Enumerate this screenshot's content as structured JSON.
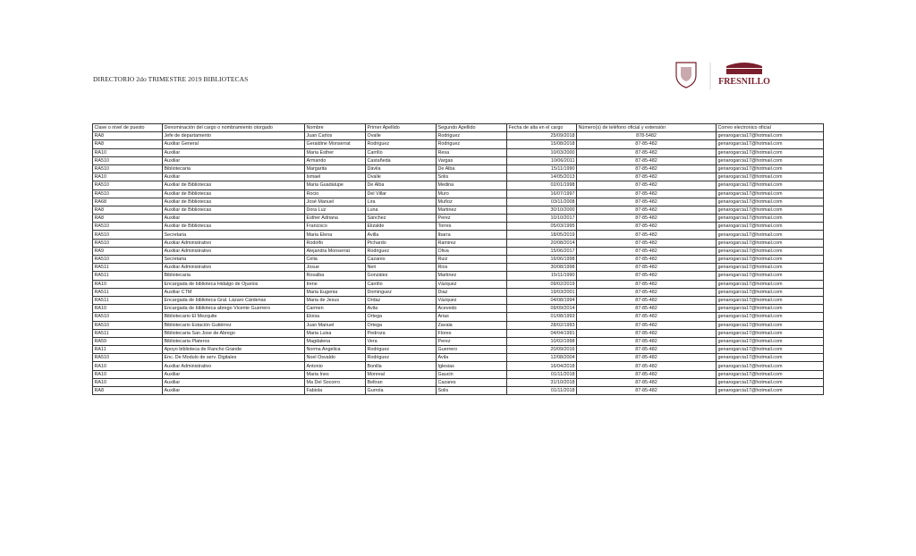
{
  "title": "DIRECTORIO 2do TRIMESTRE 2019 BIBLIOTECAS",
  "logo": {
    "text": "FRESNILLO",
    "subtitle": "2018-2021",
    "color": "#7a1f2b"
  },
  "columns": [
    "Clave o nivel de puesto",
    "Denominación del cargo o nombramiento otorgado",
    "Nombre",
    "Primer Apellido",
    "Segundo Apellido",
    "Fecha de alta en el cargo",
    "Número(s) de teléfono oficial y extensión",
    "Correo electronico oficial"
  ],
  "rows": [
    [
      "RA8",
      "Jefe de departamento",
      "Juan Carlos",
      "Ovalle",
      "Rodriguez",
      "25/09/2018",
      "878-5482",
      "genarogarcia17@hotmail.com"
    ],
    [
      "RA8",
      "Auxiliar General",
      "Geraldine Monserrat",
      "Rodriguez",
      "Rodriguez",
      "15/08/2018",
      "87-85-482",
      "genarogarcia17@hotmail.com"
    ],
    [
      "RA10",
      "Auxiliar",
      "Maria Esther",
      "Carrillo",
      "Resa",
      "10/03/2000",
      "87-85-482",
      "genarogarcia17@hotmail.com"
    ],
    [
      "RA510",
      "Auxiliar",
      "Armando",
      "Castañeda",
      "Vargas",
      "10/06/2011",
      "87-85-482",
      "genarogarcia17@hotmail.com"
    ],
    [
      "RA510",
      "Bibliotecaria",
      "Margarita",
      "Dávila",
      "De Alba",
      "15/11/1990",
      "87-85-482",
      "genarogarcia17@hotmail.com"
    ],
    [
      "RA10",
      "Auxiliar",
      "Ismael",
      "Ovalle",
      "Solis",
      "14/05/2013",
      "87-85-482",
      "genarogarcia17@hotmail.com"
    ],
    [
      "RA510",
      "Auxiliar de Bibliotecas",
      "Maria Guadalupe",
      "De Alba",
      "Medina",
      "02/01/1998",
      "87-85-482",
      "genarogarcia17@hotmail.com"
    ],
    [
      "RA510",
      "Auxiliar de Bibliotecas",
      "Rocio",
      "Del Villar",
      "Muro",
      "16/07/1997",
      "87-85-482",
      "genarogarcia17@hotmail.com"
    ],
    [
      "RA68",
      "Auxiliar de Bibliotecas",
      "José Manuel",
      "Lira",
      "Muñoz",
      "03/11/2008",
      "87-85-482",
      "genarogarcia17@hotmail.com"
    ],
    [
      "RA8",
      "Auxiliar de Bibliotecas",
      "Dora Luz",
      "Luna",
      "Martinez",
      "30/10/2000",
      "87-85-482",
      "genarogarcia17@hotmail.com"
    ],
    [
      "RA8",
      "Auxiliar",
      "Esther Adriana",
      "Sánchez",
      "Perez",
      "10/10/2017",
      "87-85-482",
      "genarogarcia17@hotmail.com"
    ],
    [
      "RA510",
      "Auxiliar de Bibliotecas",
      "Francisco",
      "Elizalde",
      "Torres",
      "05/03/1995",
      "87-85-482",
      "genarogarcia17@hotmail.com"
    ],
    [
      "RA510",
      "Secretaria",
      "Maria Elena",
      "Avilla",
      "Ibarra",
      "18/05/2019",
      "87-85-482",
      "genarogarcia17@hotmail.com"
    ],
    [
      "RA510",
      "Auxiliar Administrativo",
      "Rodolfo",
      "Pichardo",
      "Ramirez",
      "20/08/2014",
      "87-85-482",
      "genarogarcia17@hotmail.com"
    ],
    [
      "RA9",
      "Auxiliar Administrativo",
      "Alejandra Monserrat",
      "Rodriguez",
      "Oliva",
      "15/06/2017",
      "87-85-482",
      "genarogarcia17@hotmail.com"
    ],
    [
      "RA510",
      "Secretaria",
      "Celia",
      "Cazares",
      "Ruiz",
      "16/06/1998",
      "87-85-482",
      "genarogarcia17@hotmail.com"
    ],
    [
      "RA511",
      "Auxiliar Administrativo",
      "Josue",
      "Neri",
      "Rios",
      "30/08/1998",
      "87-85-482",
      "genarogarcia17@hotmail.com"
    ],
    [
      "RA511",
      "Bibliotecaria",
      "Rosalba",
      "Gonzáles",
      "Martinez",
      "15/11/1990",
      "87-85-482",
      "genarogarcia17@hotmail.com"
    ],
    [
      "RA10",
      "Encargada de biblioteca Hidalgo de Ojuelos",
      "Irene",
      "Carrillo",
      "Vázquez",
      "09/02/2019",
      "87-85-482",
      "genarogarcia17@hotmail.com"
    ],
    [
      "RA511",
      "Auxiliar CTM",
      "Maria Eugenia",
      "Dominguez",
      "Diaz",
      "19/03/2001",
      "87-85-482",
      "genarogarcia17@hotmail.com"
    ],
    [
      "RA511",
      "Encargada de biblioteca Gral. Lázaro Cárdenas",
      "Maria de Jesus",
      "Ordaz",
      "Vázquez",
      "04/08/1994",
      "87-85-482",
      "genarogarcia17@hotmail.com"
    ],
    [
      "RA10",
      "Encargada de biblioteca abrego Vicente Guerrero",
      "Carmen",
      "Avila",
      "Acevedo",
      "09/09/2014",
      "87-85-482",
      "genarogarcia17@hotmail.com"
    ],
    [
      "RA510",
      "Bibliotecario El Mezquite",
      "Eloisa",
      "Ortega",
      "Arias",
      "01/08/1993",
      "87-85-482",
      "genarogarcia17@hotmail.com"
    ],
    [
      "RA510",
      "Bibliotecario Estación Gutiérrez",
      "Juan Manuel",
      "Ortega",
      "Zavala",
      "28/02/1993",
      "87-85-482",
      "genarogarcia17@hotmail.com"
    ],
    [
      "RA511",
      "Bibliotecaria San Jose de Abrego",
      "Maria Luisa",
      "Pedroza",
      "Flores",
      "04/04/1991",
      "87-85-482",
      "genarogarcia17@hotmail.com"
    ],
    [
      "RA59",
      "Bibliotecaria Plateros",
      "Magdalena",
      "Vera",
      "Perez",
      "10/02/1998",
      "87-85-482",
      "genarogarcia17@hotmail.com"
    ],
    [
      "RA11",
      "Apoyo biblioteca de Rancho Grande",
      "Norma Angelica",
      "Rodriguez",
      "Guerrero",
      "20/09/2016",
      "87-85-482",
      "genarogarcia17@hotmail.com"
    ],
    [
      "RA510",
      "Enc. De Modulo de serv. Digitales",
      "Noel Osvaldo",
      "Rodriguez",
      "Avila",
      "12/08/2004",
      "87-85-482",
      "genarogarcia17@hotmail.com"
    ],
    [
      "RA10",
      "Auxiliar Administrativo",
      "Antonio",
      "Bonilla",
      "Iglesias",
      "16/04/2018",
      "87-85-482",
      "genarogarcia17@hotmail.com"
    ],
    [
      "RA10",
      "Auxiliar",
      "Maria Ines",
      "Monreal",
      "Gaucin",
      "01/11/2018",
      "87-85-482",
      "genarogarcia17@hotmail.com"
    ],
    [
      "RA10",
      "Auxiliar",
      "Ma Del Socorro",
      "Beltran",
      "Cazares",
      "31/10/2018",
      "87-85-482",
      "genarogarcia17@hotmail.com"
    ],
    [
      "RA8",
      "Auxiliar",
      "Fabiola",
      "Gurrola",
      "Solis",
      "01/11/2018",
      "87-85-482",
      "genarogarcia17@hotmail.com"
    ]
  ]
}
